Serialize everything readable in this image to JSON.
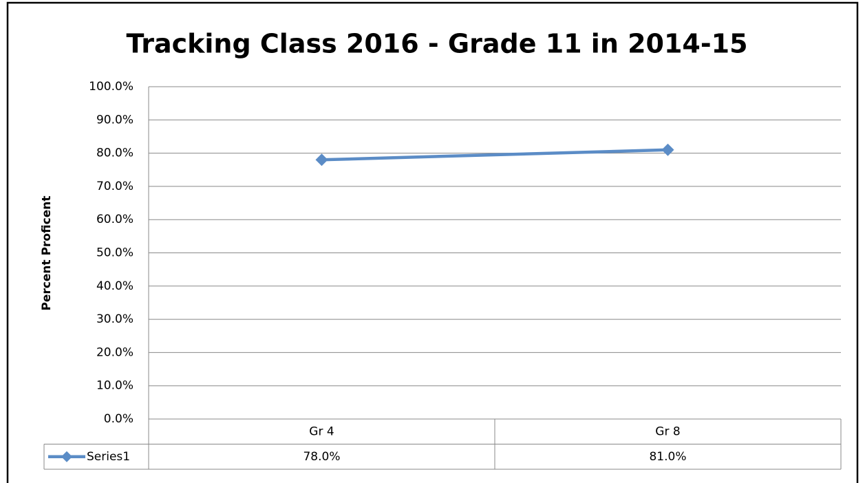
{
  "chart_data": {
    "type": "line",
    "title": "Tracking Class 2016 - Grade 11 in 2014-15",
    "y_label": "Percent Proficent",
    "categories": [
      "Gr 4",
      "Gr 8"
    ],
    "series": [
      {
        "name": "Series1",
        "color": "#5b8cc6",
        "values": [
          78,
          81
        ],
        "value_labels": [
          "78.0%",
          "81.0%"
        ]
      }
    ],
    "ylim": [
      0,
      100
    ],
    "yticks": [
      {
        "value": 0,
        "label": "0.0%"
      },
      {
        "value": 10,
        "label": "10.0%"
      },
      {
        "value": 20,
        "label": "20.0%"
      },
      {
        "value": 30,
        "label": "30.0%"
      },
      {
        "value": 40,
        "label": "40.0%"
      },
      {
        "value": 50,
        "label": "50.0%"
      },
      {
        "value": 60,
        "label": "60.0%"
      },
      {
        "value": 70,
        "label": "70.0%"
      },
      {
        "value": 80,
        "label": "80.0%"
      },
      {
        "value": 90,
        "label": "90.0%"
      },
      {
        "value": 100,
        "label": "100.0%"
      }
    ],
    "grid": true,
    "data_table": true
  }
}
